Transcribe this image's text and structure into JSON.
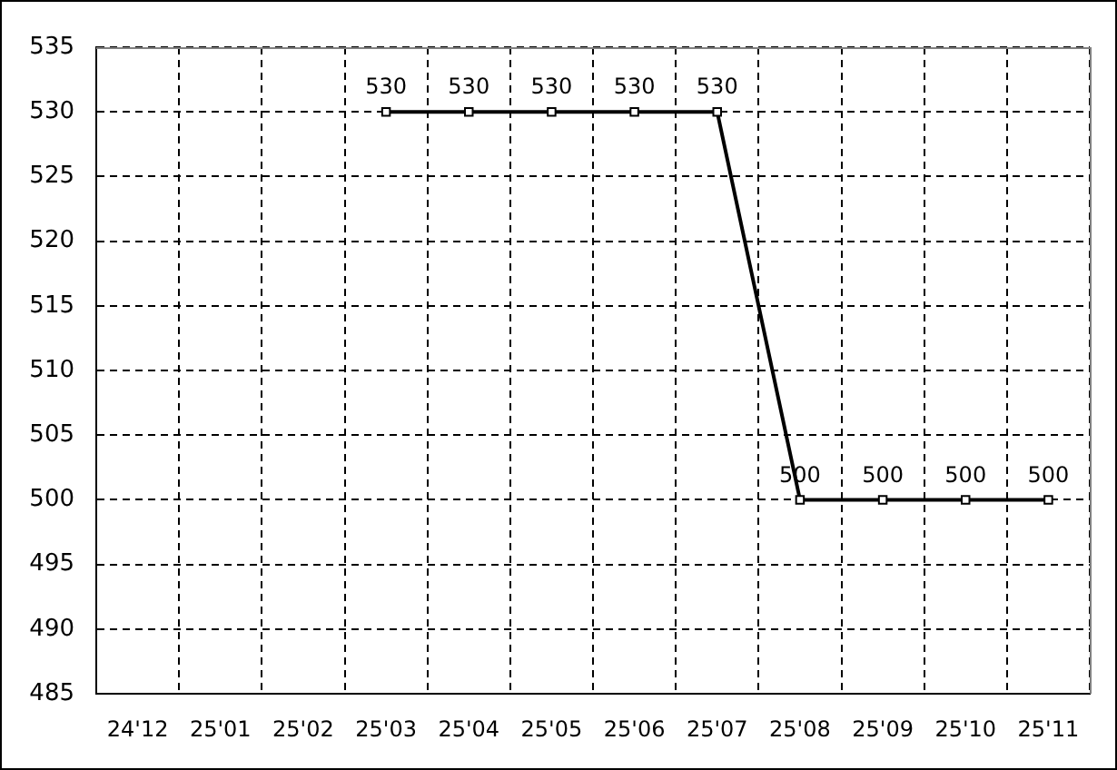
{
  "chart_data": {
    "type": "line",
    "categories": [
      "24'12",
      "25'01",
      "25'02",
      "25'03",
      "25'04",
      "25'05",
      "25'06",
      "25'07",
      "25'08",
      "25'09",
      "25'10",
      "25'11"
    ],
    "series": [
      {
        "color": "#000000",
        "values": [
          null,
          null,
          null,
          530,
          530,
          530,
          530,
          530,
          500,
          500,
          500,
          500
        ]
      }
    ],
    "ylim": [
      485,
      535
    ],
    "yticks": [
      485,
      490,
      495,
      500,
      505,
      510,
      515,
      520,
      525,
      530,
      535
    ],
    "grid": true,
    "marker": "square",
    "line_style": "solid",
    "data_labels": true
  }
}
